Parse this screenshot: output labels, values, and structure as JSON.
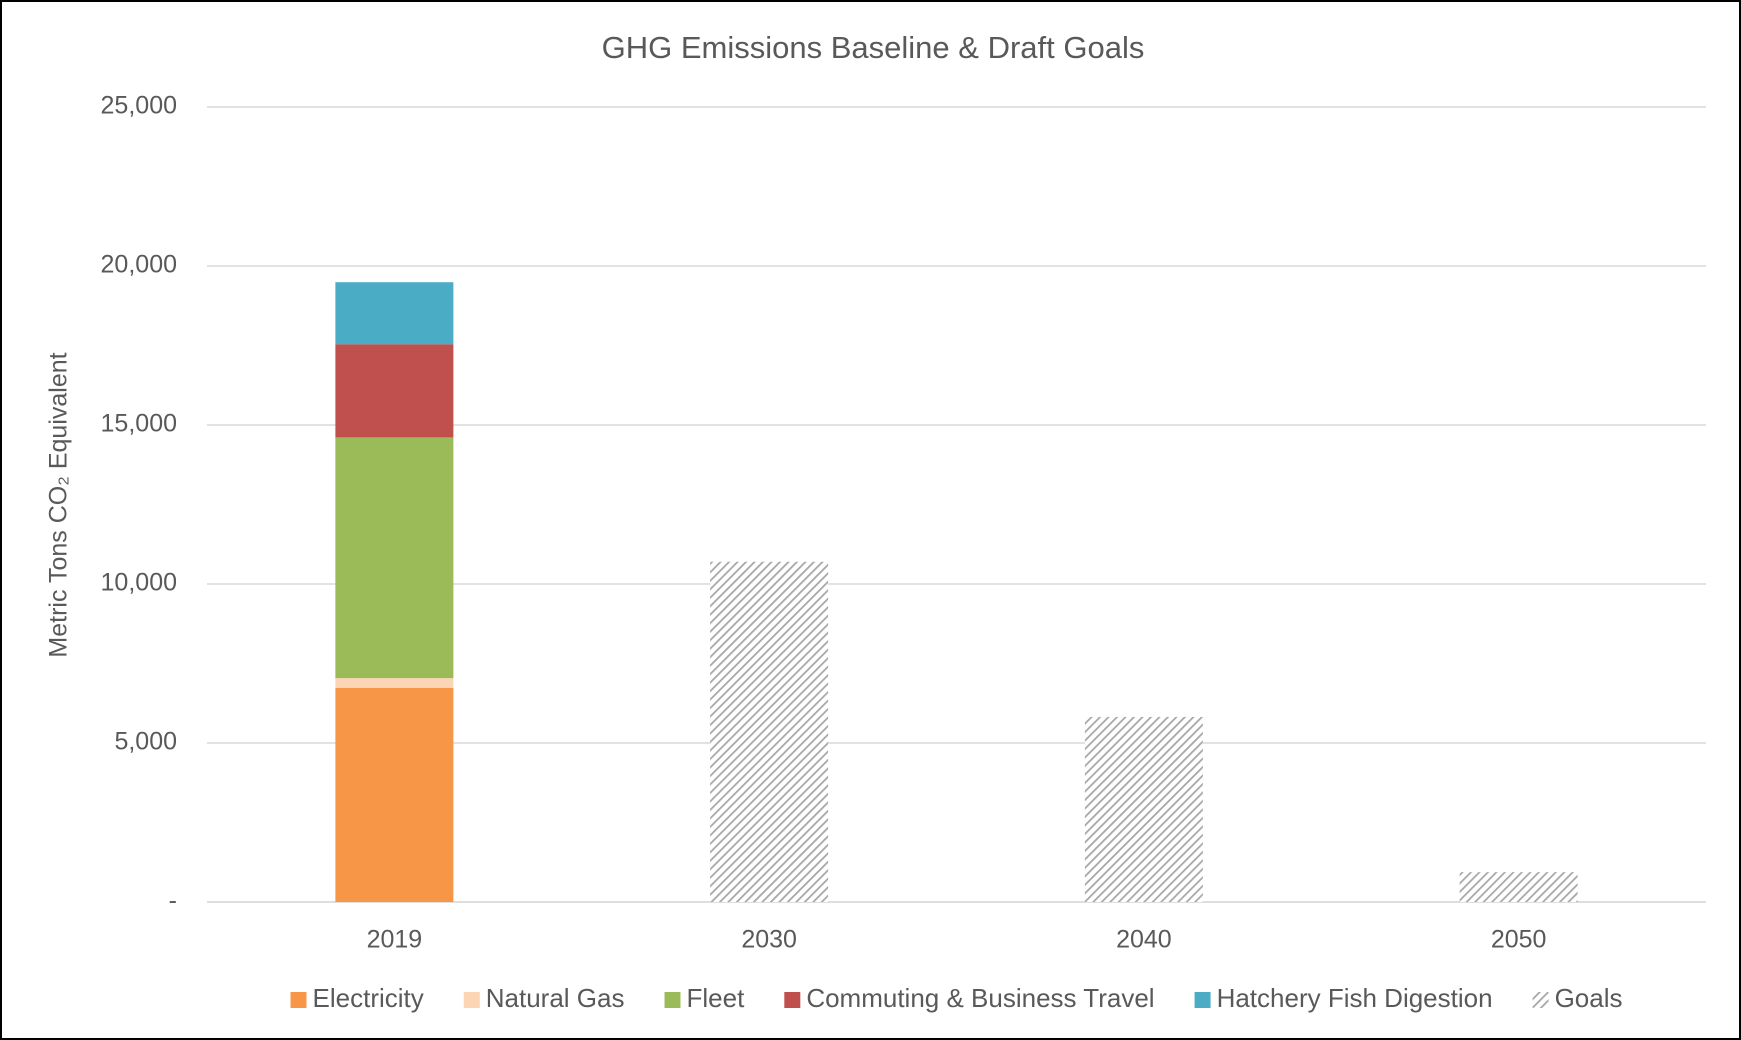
{
  "chart_data": {
    "type": "bar",
    "stacked": true,
    "title": "GHG Emissions Baseline & Draft Goals",
    "y_label": "Metric Tons CO₂ Equivalent",
    "categories": [
      "2019",
      "2030",
      "2040",
      "2050"
    ],
    "series": [
      {
        "name": "Electricity",
        "color": "#f79646",
        "values": [
          6730,
          null,
          null,
          null
        ]
      },
      {
        "name": "Natural Gas",
        "color": "#fcd5b5",
        "values": [
          310,
          null,
          null,
          null
        ]
      },
      {
        "name": "Fleet",
        "color": "#9bbb59",
        "values": [
          7570,
          null,
          null,
          null
        ]
      },
      {
        "name": "Commuting & Business Travel",
        "color": "#c0504d",
        "values": [
          2930,
          null,
          null,
          null
        ]
      },
      {
        "name": "Hatchery Fish Digestion",
        "color": "#4bacc6",
        "values": [
          1950,
          null,
          null,
          null
        ]
      },
      {
        "name": "Goals",
        "color": "#a6a6a6",
        "hatch": true,
        "values": [
          null,
          10700,
          5820,
          940
        ]
      }
    ],
    "ylim": [
      0,
      25000
    ],
    "yticks": [
      {
        "value": 0,
        "label": "-"
      },
      {
        "value": 5000,
        "label": "5,000"
      },
      {
        "value": 10000,
        "label": "10,000"
      },
      {
        "value": 15000,
        "label": "15,000"
      },
      {
        "value": 20000,
        "label": "20,000"
      },
      {
        "value": 25000,
        "label": "25,000"
      }
    ],
    "grid": true,
    "legend": "bottom"
  }
}
